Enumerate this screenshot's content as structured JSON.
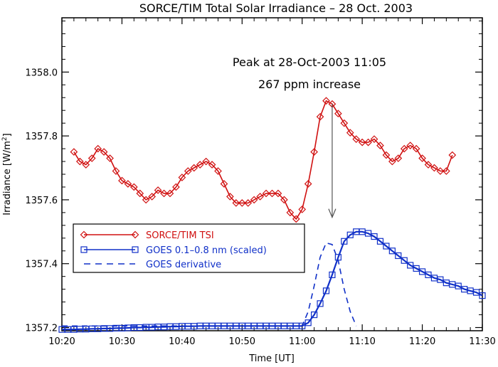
{
  "chart_data": {
    "type": "line",
    "title": "SORCE/TIM Total Solar Irradiance – 28 Oct. 2003",
    "xlabel": "Time [UT]",
    "ylabel": "Irradiance [W/m²]",
    "ylabel_main": "Irradiance [W/m",
    "ylabel_sup": "2",
    "ylabel_end": "]",
    "xlim": [
      620,
      690
    ],
    "ylim": [
      1357.19,
      1358.17
    ],
    "x_ticks": [
      620,
      630,
      640,
      650,
      660,
      670,
      680,
      690
    ],
    "x_tick_labels": [
      "10:20",
      "10:30",
      "10:40",
      "10:50",
      "11:00",
      "11:10",
      "11:20",
      "11:30"
    ],
    "y_ticks": [
      1357.2,
      1357.4,
      1357.6,
      1357.8,
      1358.0
    ],
    "y_tick_labels": [
      "1357.2",
      "1357.4",
      "1357.6",
      "1357.8",
      "1358.0"
    ],
    "annotations": {
      "peak_line": "Peak at 28-Oct-2003 11:05",
      "increase_line": "267 ppm increase",
      "arrow": {
        "from": [
          665,
          1357.9
        ],
        "to": [
          665,
          1357.545
        ]
      }
    },
    "legend_position": "left-middle",
    "grid": false,
    "series": [
      {
        "name": "SORCE/TIM TSI",
        "color": "#d01010",
        "marker": "diamond",
        "line": "solid",
        "x": [
          622.0,
          623.0,
          624.0,
          625.0,
          626.0,
          627.0,
          628.0,
          629.0,
          630.0,
          631.0,
          632.0,
          633.0,
          634.0,
          635.0,
          636.0,
          637.0,
          638.0,
          639.0,
          640.0,
          641.0,
          642.0,
          643.0,
          644.0,
          645.0,
          646.0,
          647.0,
          648.0,
          649.0,
          650.0,
          651.0,
          652.0,
          653.0,
          654.0,
          655.0,
          656.0,
          657.0,
          658.0,
          659.0,
          660.0,
          661.0,
          662.0,
          663.0,
          664.0,
          665.0,
          666.0,
          667.0,
          668.0,
          669.0,
          670.0,
          671.0,
          672.0,
          673.0,
          674.0,
          675.0,
          676.0,
          677.0,
          678.0,
          679.0,
          680.0,
          681.0,
          682.0,
          683.0,
          684.0,
          685.0
        ],
        "y": [
          1357.75,
          1357.72,
          1357.71,
          1357.73,
          1357.76,
          1357.75,
          1357.73,
          1357.69,
          1357.66,
          1357.65,
          1357.64,
          1357.62,
          1357.6,
          1357.61,
          1357.63,
          1357.62,
          1357.62,
          1357.64,
          1357.67,
          1357.69,
          1357.7,
          1357.71,
          1357.72,
          1357.71,
          1357.69,
          1357.65,
          1357.61,
          1357.59,
          1357.59,
          1357.59,
          1357.6,
          1357.61,
          1357.62,
          1357.62,
          1357.62,
          1357.6,
          1357.56,
          1357.54,
          1357.57,
          1357.65,
          1357.75,
          1357.86,
          1357.91,
          1357.9,
          1357.87,
          1357.84,
          1357.81,
          1357.79,
          1357.78,
          1357.78,
          1357.79,
          1357.77,
          1357.74,
          1357.72,
          1357.73,
          1357.76,
          1357.77,
          1357.76,
          1357.73,
          1357.71,
          1357.7,
          1357.69,
          1357.69,
          1357.74
        ]
      },
      {
        "name": "GOES 0.1–0.8 nm (scaled)",
        "color": "#1030c8",
        "marker": "square",
        "line": "solid",
        "x": [
          620.0,
          621.0,
          622.0,
          623.0,
          624.0,
          625.0,
          626.0,
          627.0,
          628.0,
          629.0,
          630.0,
          631.0,
          632.0,
          633.0,
          634.0,
          635.0,
          636.0,
          637.0,
          638.0,
          639.0,
          640.0,
          641.0,
          642.0,
          643.0,
          644.0,
          645.0,
          646.0,
          647.0,
          648.0,
          649.0,
          650.0,
          651.0,
          652.0,
          653.0,
          654.0,
          655.0,
          656.0,
          657.0,
          658.0,
          659.0,
          660.0,
          661.0,
          662.0,
          663.0,
          664.0,
          665.0,
          666.0,
          667.0,
          668.0,
          669.0,
          670.0,
          671.0,
          672.0,
          673.0,
          674.0,
          675.0,
          676.0,
          677.0,
          678.0,
          679.0,
          680.0,
          681.0,
          682.0,
          683.0,
          684.0,
          685.0,
          686.0,
          687.0,
          688.0,
          689.0,
          690.0
        ],
        "y": [
          1357.194,
          1357.194,
          1357.194,
          1357.195,
          1357.195,
          1357.196,
          1357.196,
          1357.197,
          1357.197,
          1357.198,
          1357.198,
          1357.199,
          1357.2,
          1357.2,
          1357.201,
          1357.201,
          1357.202,
          1357.202,
          1357.203,
          1357.203,
          1357.204,
          1357.204,
          1357.204,
          1357.205,
          1357.205,
          1357.205,
          1357.205,
          1357.205,
          1357.205,
          1357.205,
          1357.205,
          1357.205,
          1357.205,
          1357.205,
          1357.205,
          1357.205,
          1357.205,
          1357.205,
          1357.205,
          1357.205,
          1357.205,
          1357.215,
          1357.24,
          1357.275,
          1357.315,
          1357.365,
          1357.42,
          1357.47,
          1357.49,
          1357.5,
          1357.5,
          1357.495,
          1357.485,
          1357.47,
          1357.455,
          1357.44,
          1357.425,
          1357.41,
          1357.395,
          1357.385,
          1357.375,
          1357.365,
          1357.355,
          1357.35,
          1357.34,
          1357.335,
          1357.33,
          1357.32,
          1357.315,
          1357.31,
          1357.3
        ]
      },
      {
        "name": "GOES derivative",
        "color": "#1030c8",
        "marker": "none",
        "line": "dashed",
        "x": [
          620,
          660,
          661,
          662,
          663,
          664,
          665,
          666,
          667,
          668,
          669
        ],
        "y": [
          1357.205,
          1357.205,
          1357.25,
          1357.33,
          1357.42,
          1357.465,
          1357.46,
          1357.41,
          1357.32,
          1357.25,
          1357.205
        ]
      }
    ]
  }
}
